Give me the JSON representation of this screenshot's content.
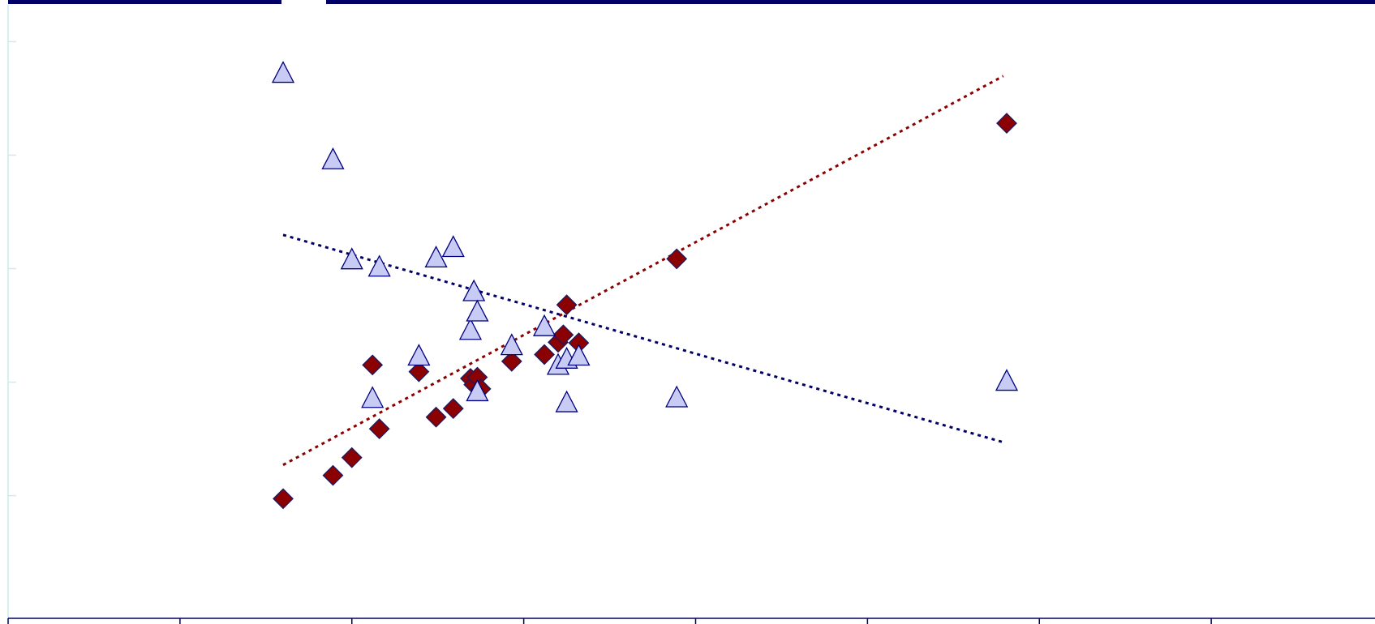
{
  "colors": {
    "frame": "#000066",
    "series_diamond_fill": "#8b0000",
    "series_diamond_stroke": "#1a1a66",
    "series_triangle_fill": "#c8ccf5",
    "series_triangle_stroke": "#000080",
    "trend_diamond": "#8b0000",
    "trend_triangle": "#000066",
    "axis": "#000066",
    "y_ticks": "#c9ecec"
  },
  "chart_data": {
    "type": "scatter",
    "title": "",
    "xlabel": "",
    "ylabel": "",
    "xlim": [
      0,
      8
    ],
    "ylim": [
      0,
      100
    ],
    "grid": false,
    "x_tick_count": 8,
    "y_tick_positions": [
      20,
      38.5,
      57,
      75.5,
      94
    ],
    "series": [
      {
        "marker": "diamond",
        "points": [
          [
            1.6,
            19.5
          ],
          [
            1.89,
            23.3
          ],
          [
            2.0,
            26.2
          ],
          [
            2.12,
            41.3
          ],
          [
            2.16,
            30.9
          ],
          [
            2.39,
            40.2
          ],
          [
            2.49,
            32.8
          ],
          [
            2.59,
            34.2
          ],
          [
            2.69,
            39.1
          ],
          [
            2.71,
            38.1
          ],
          [
            2.73,
            39.3
          ],
          [
            2.75,
            37.4
          ],
          [
            2.93,
            41.9
          ],
          [
            3.12,
            43.0
          ],
          [
            3.2,
            45.0
          ],
          [
            3.23,
            46.2
          ],
          [
            3.25,
            51.1
          ],
          [
            3.32,
            44.9
          ],
          [
            3.89,
            58.6
          ],
          [
            5.81,
            80.7
          ]
        ],
        "trendline": {
          "type": "linear",
          "points": [
            [
              1.6,
              25.0
            ],
            [
              5.79,
              88.4
            ]
          ]
        }
      },
      {
        "marker": "triangle",
        "points": [
          [
            1.6,
            88.7
          ],
          [
            1.89,
            74.6
          ],
          [
            2.0,
            58.3
          ],
          [
            2.12,
            35.7
          ],
          [
            2.16,
            57.1
          ],
          [
            2.39,
            42.6
          ],
          [
            2.49,
            58.6
          ],
          [
            2.59,
            60.3
          ],
          [
            2.69,
            46.8
          ],
          [
            2.71,
            53.1
          ],
          [
            2.73,
            49.8
          ],
          [
            2.73,
            36.8
          ],
          [
            2.93,
            44.3
          ],
          [
            3.12,
            47.4
          ],
          [
            3.2,
            41.1
          ],
          [
            3.25,
            42.1
          ],
          [
            3.25,
            35.0
          ],
          [
            3.32,
            42.6
          ],
          [
            3.89,
            35.8
          ],
          [
            5.81,
            38.5
          ]
        ],
        "trendline": {
          "type": "linear",
          "points": [
            [
              1.6,
              62.5
            ],
            [
              5.79,
              28.7
            ]
          ]
        }
      }
    ]
  }
}
